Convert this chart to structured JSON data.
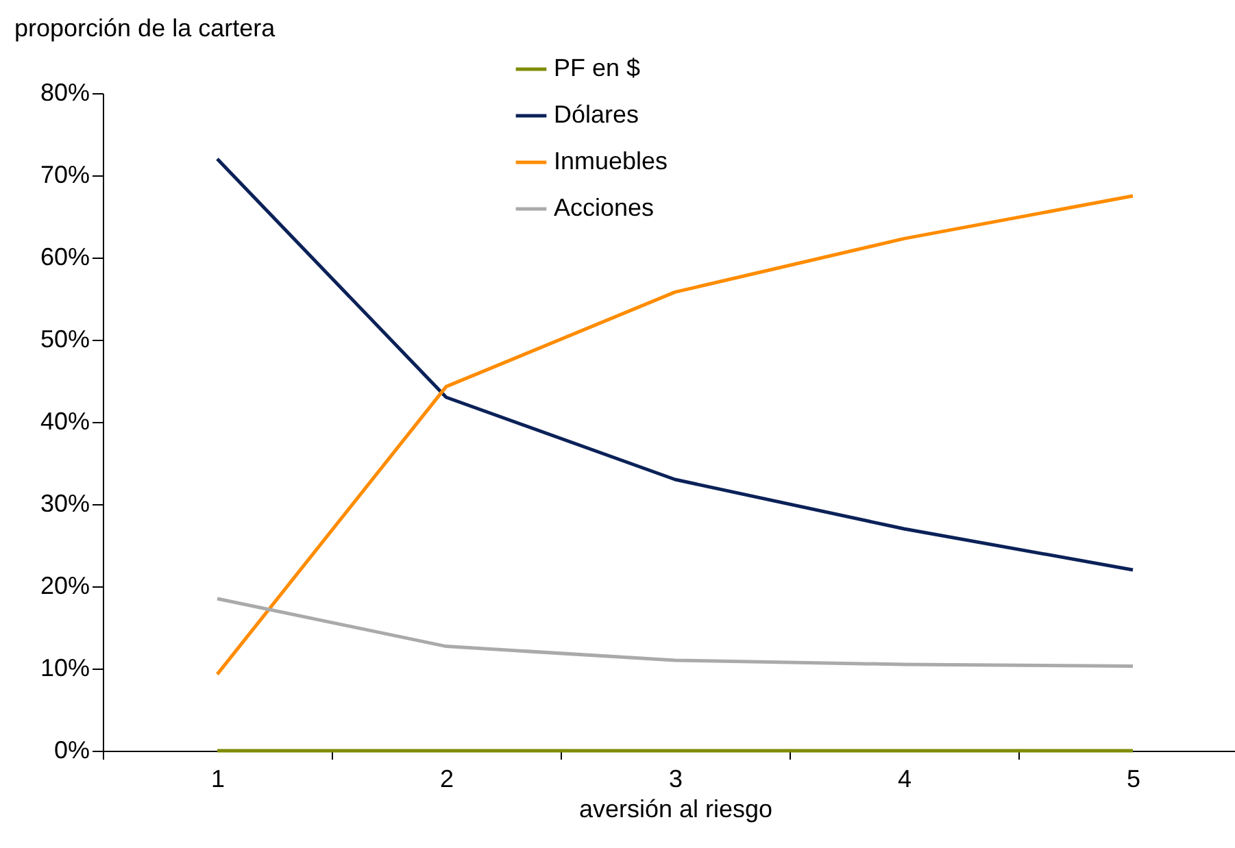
{
  "chart_data": {
    "type": "line",
    "ylabel": "proporción de la cartera",
    "xlabel": "aversión al riesgo",
    "categories": [
      "1",
      "2",
      "3",
      "4",
      "5"
    ],
    "series": [
      {
        "name": "PF en $",
        "color": "#7f8c00",
        "values": [
          0,
          0,
          0,
          0,
          0
        ]
      },
      {
        "name": "Dólares",
        "color": "#0b2158",
        "values": [
          72,
          43,
          33,
          27,
          22
        ]
      },
      {
        "name": "Inmuebles",
        "color": "#ff8c00",
        "values": [
          9.3,
          44.3,
          55.8,
          62.3,
          67.5
        ]
      },
      {
        "name": "Acciones",
        "color": "#aaaaaa",
        "values": [
          18.5,
          12.7,
          11,
          10.5,
          10.3
        ]
      }
    ],
    "ylim": [
      0,
      80
    ],
    "yticks": [
      {
        "value": 0,
        "label": "0%"
      },
      {
        "value": 10,
        "label": "10%"
      },
      {
        "value": 20,
        "label": "20%"
      },
      {
        "value": 30,
        "label": "30%"
      },
      {
        "value": 40,
        "label": "40%"
      },
      {
        "value": 50,
        "label": "50%"
      },
      {
        "value": 60,
        "label": "60%"
      },
      {
        "value": 70,
        "label": "70%"
      },
      {
        "value": 80,
        "label": "80%"
      }
    ],
    "legend": "top",
    "grid": false
  }
}
